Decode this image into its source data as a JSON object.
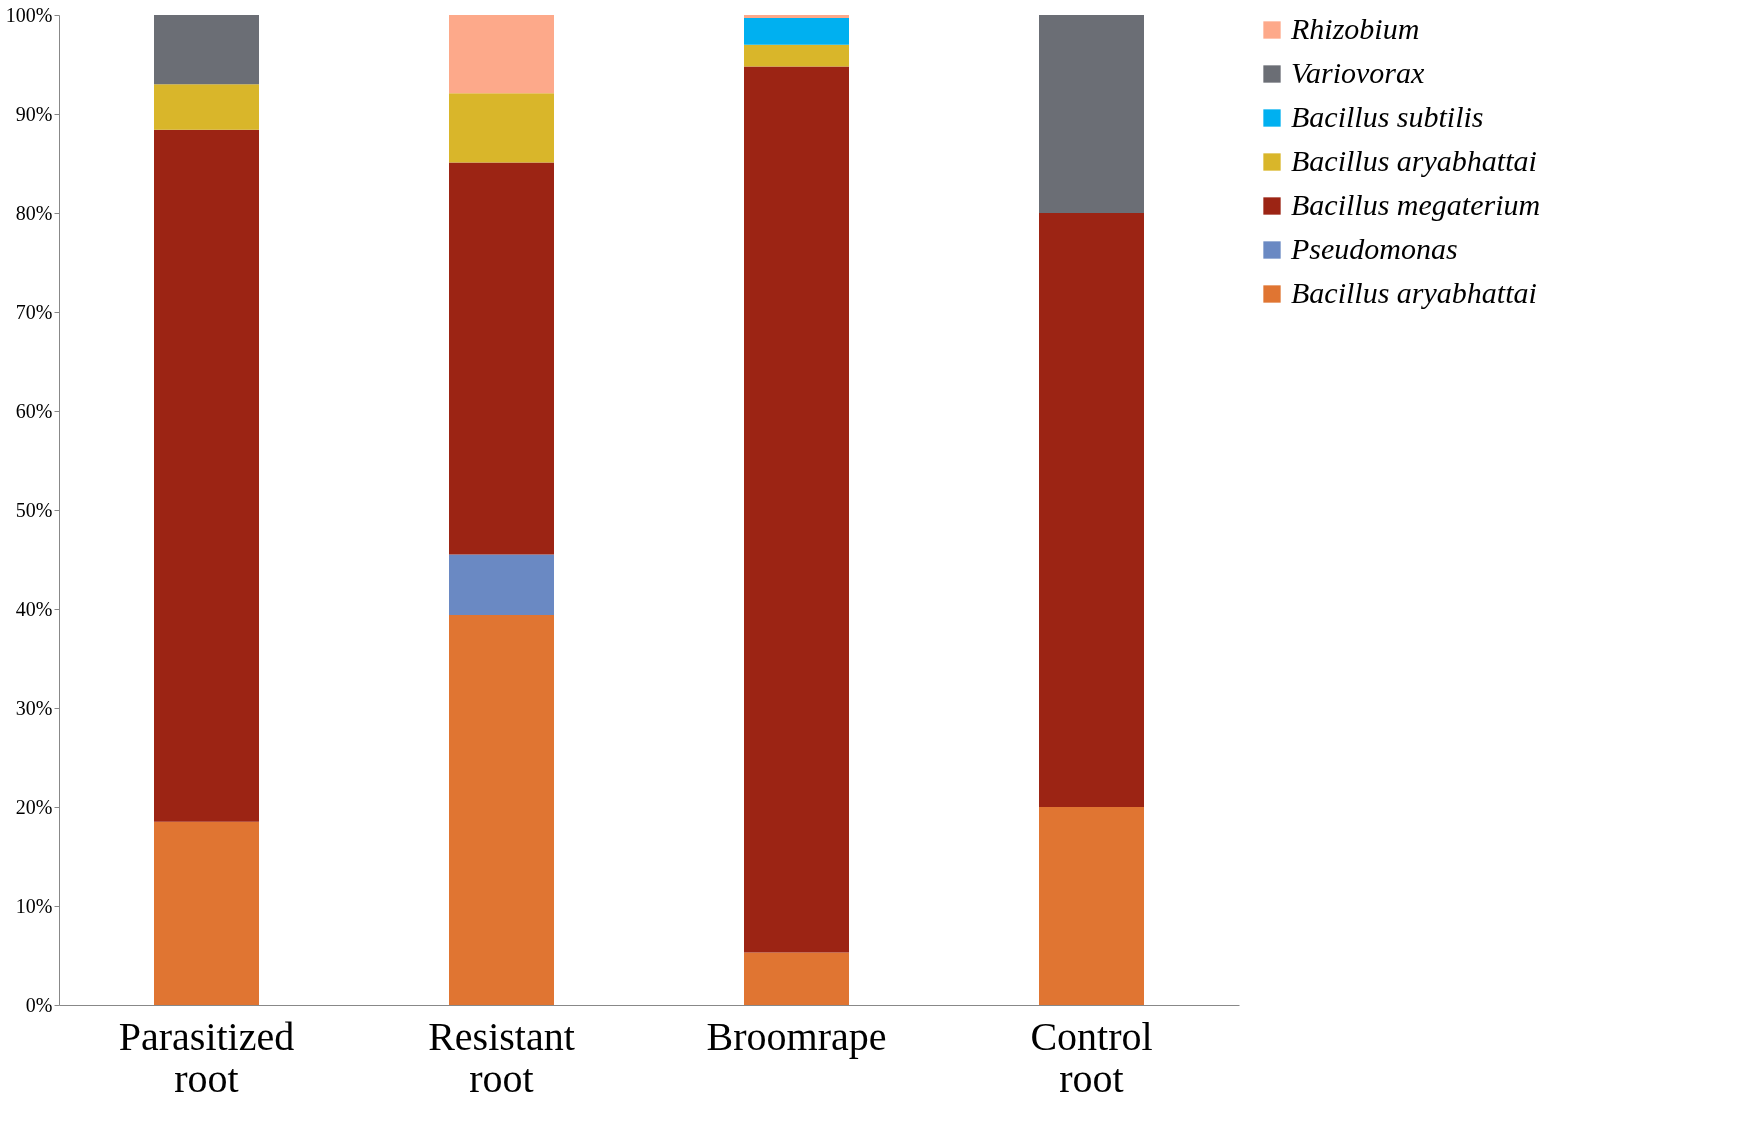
{
  "chart_data": {
    "type": "bar",
    "stacked": true,
    "categories": [
      "Parasitized root",
      "Resistant root",
      "Broomrape",
      "Control root"
    ],
    "series": [
      {
        "name": "Bacillus aryabhattai",
        "color": "#e07532",
        "values": [
          18.5,
          39.4,
          5.3,
          20
        ]
      },
      {
        "name": "Pseudomonas",
        "color": "#6a89c3",
        "values": [
          null,
          6.1,
          null,
          null
        ]
      },
      {
        "name": "Bacillus megaterium",
        "color": "#9c2414",
        "values": [
          69.9,
          39.6,
          89.5,
          60
        ]
      },
      {
        "name": "Bacillus aryabhattai",
        "color": "#d9b62a",
        "values": [
          4.6,
          7.0,
          2.2,
          null
        ]
      },
      {
        "name": "Bacillus subtilis",
        "color": "#00b0f0",
        "values": [
          null,
          null,
          2.7,
          null
        ]
      },
      {
        "name": " Variovorax",
        "color": "#6b6e75",
        "values": [
          7.0,
          null,
          null,
          20
        ]
      },
      {
        "name": "Rhizobium",
        "color": "#fda98a",
        "values": [
          null,
          7.9,
          0.3,
          null
        ]
      }
    ],
    "ylim": [
      0,
      100
    ],
    "yticks": [
      {
        "value": 0,
        "label": "0%"
      },
      {
        "value": 10,
        "label": "10%"
      },
      {
        "value": 20,
        "label": "20%"
      },
      {
        "value": 30,
        "label": "30%"
      },
      {
        "value": 40,
        "label": "40%"
      },
      {
        "value": 50,
        "label": "50%"
      },
      {
        "value": 60,
        "label": "60%"
      },
      {
        "value": 70,
        "label": "70%"
      },
      {
        "value": 80,
        "label": "80%"
      },
      {
        "value": 90,
        "label": "90%"
      },
      {
        "value": 100,
        "label": "100%"
      }
    ],
    "grid": false,
    "legend": "right"
  }
}
